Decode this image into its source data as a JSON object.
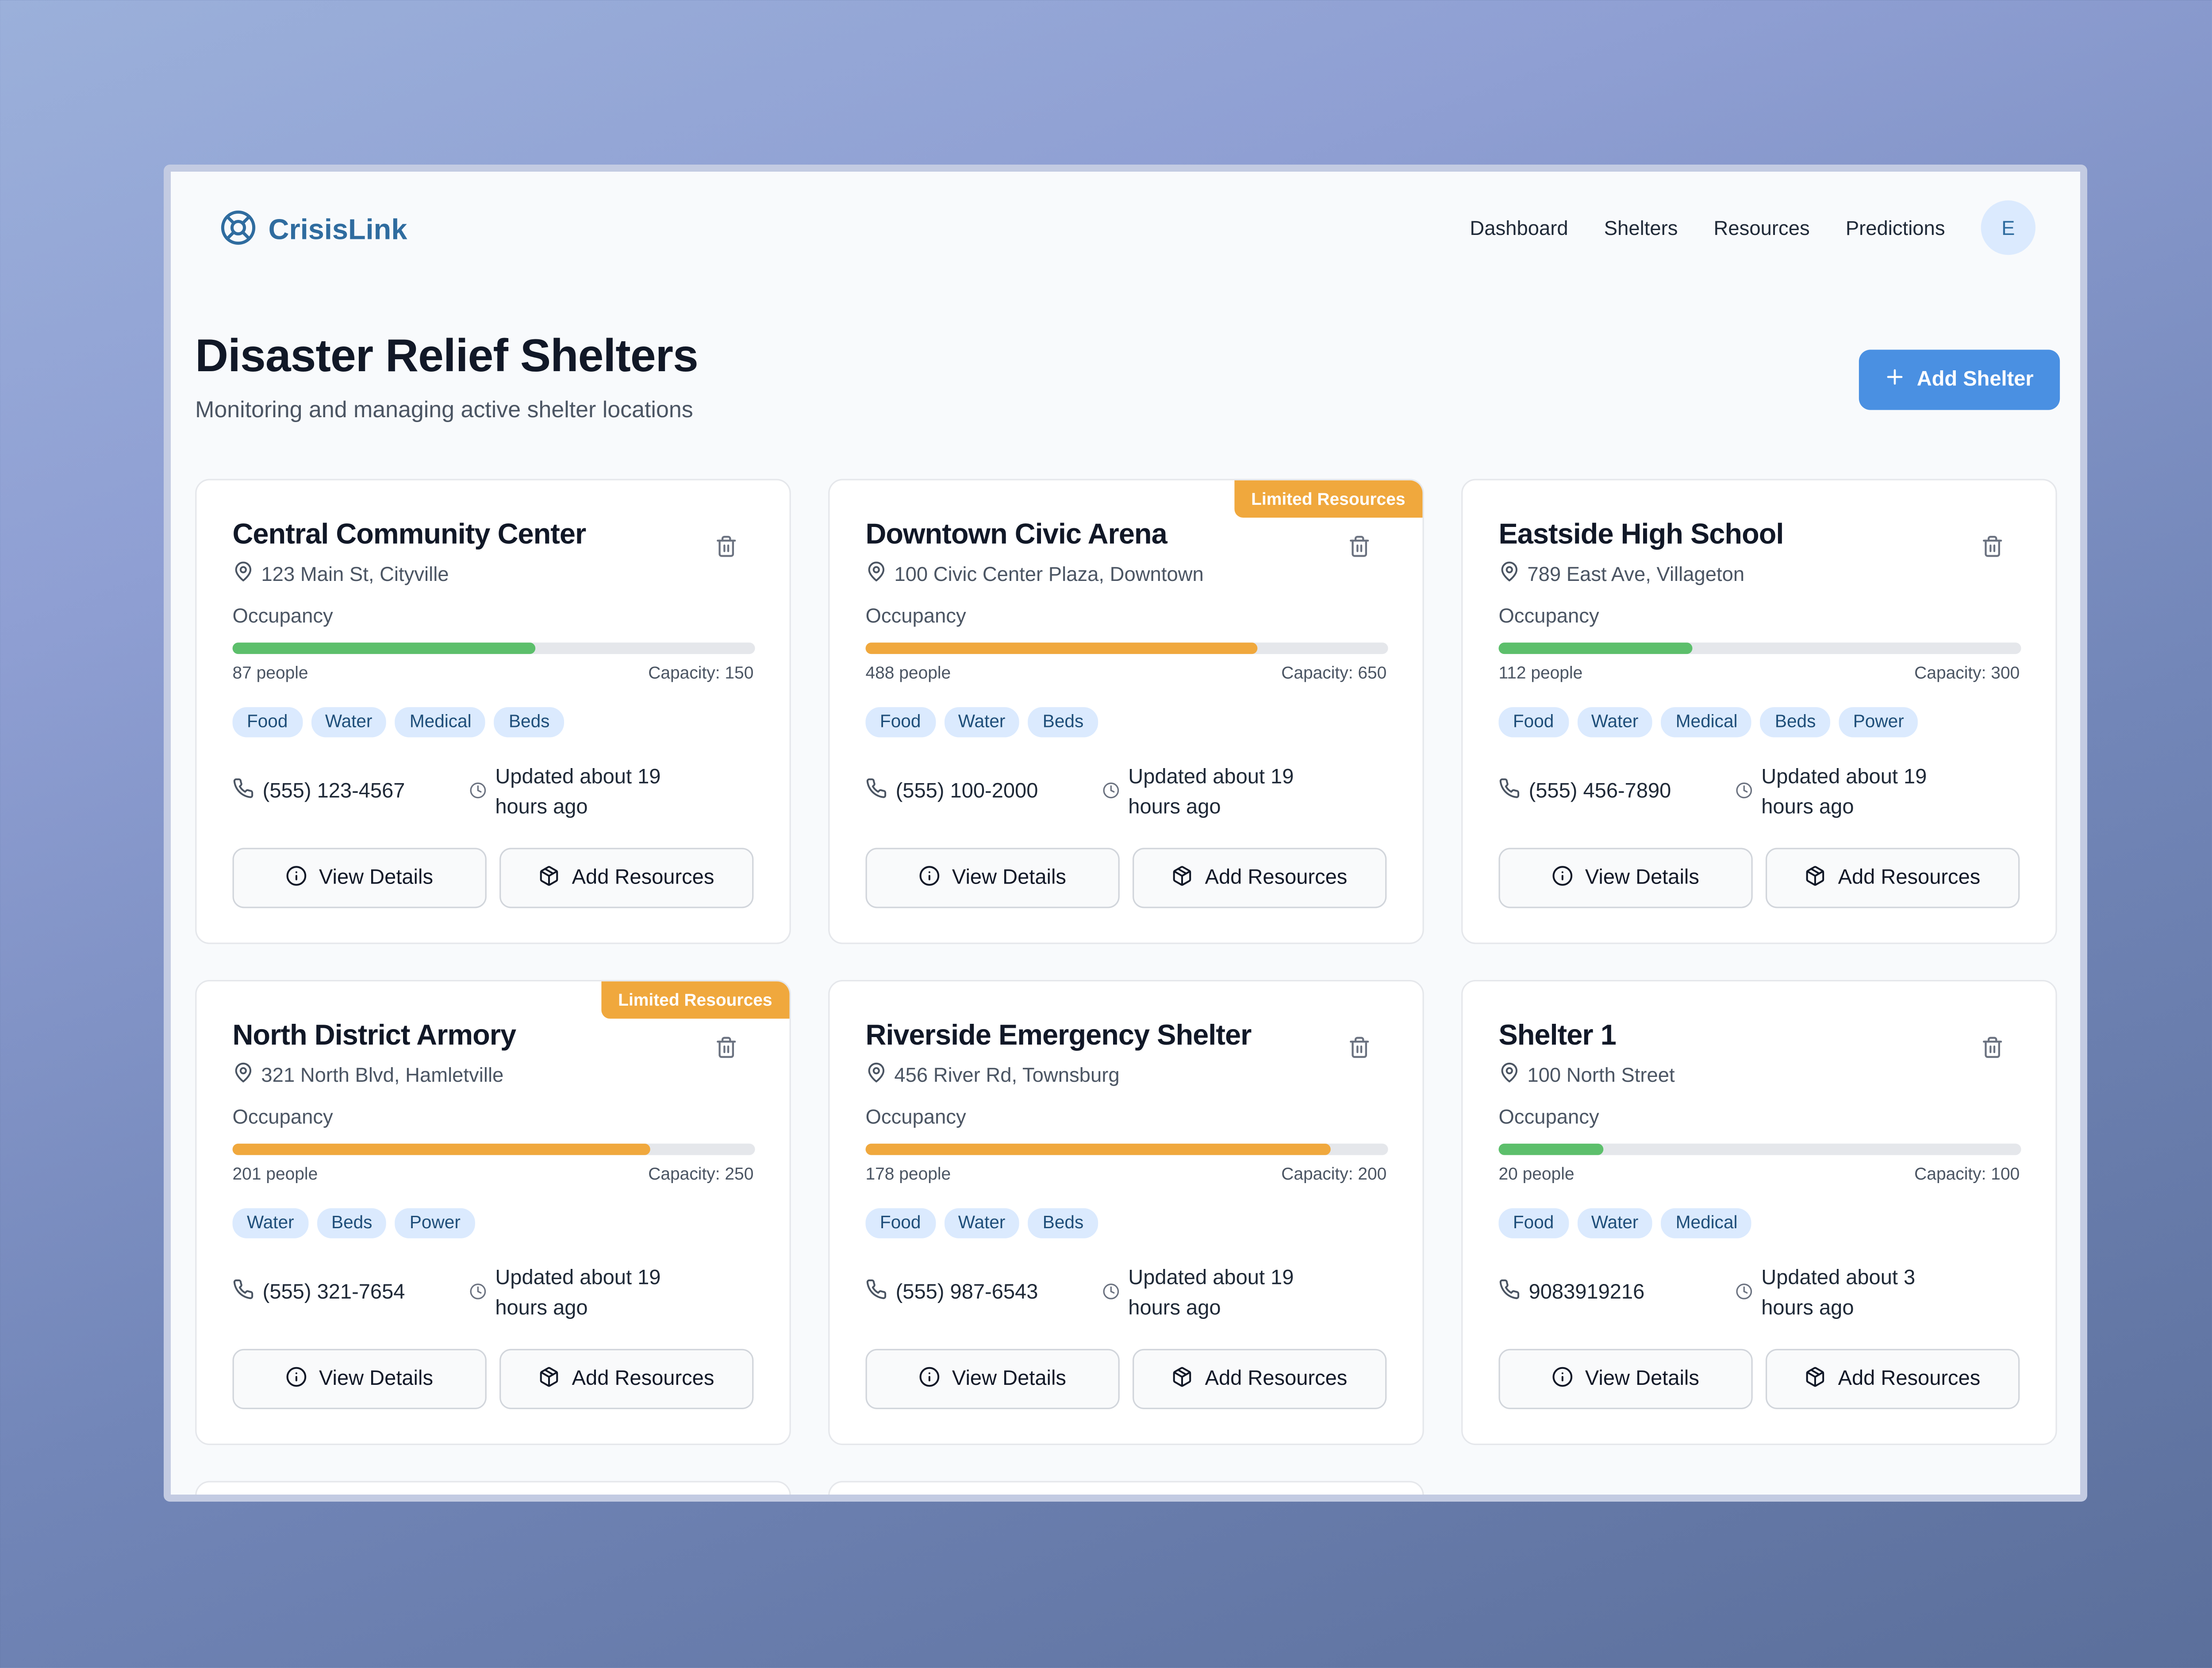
{
  "app": {
    "name": "CrisisLink",
    "logo_icon": "lifebuoy-icon"
  },
  "nav": {
    "items": [
      "Dashboard",
      "Shelters",
      "Resources",
      "Predictions"
    ],
    "avatar_initial": "E"
  },
  "page": {
    "title": "Disaster Relief Shelters",
    "subtitle": "Monitoring and managing active shelter locations",
    "add_button": "Add Shelter"
  },
  "labels": {
    "occupancy": "Occupancy",
    "view_details": "View Details",
    "add_resources": "Add Resources"
  },
  "colors": {
    "primary": "#4a90e2",
    "ok": "#5cbf6b",
    "warning": "#f0a83d",
    "tag_bg": "#dbeafe"
  },
  "shelters": [
    {
      "name": "Central Community Center",
      "address": "123 Main St, Cityville",
      "people": "87 people",
      "capacity": "Capacity: 150",
      "occupancy_fraction": 0.58,
      "status": "ok",
      "badge": "",
      "tags": [
        "Food",
        "Water",
        "Medical",
        "Beds"
      ],
      "phone": "(555) 123-4567",
      "updated": "Updated about 19 hours ago"
    },
    {
      "name": "Downtown Civic Arena",
      "address": "100 Civic Center Plaza, Downtown",
      "people": "488 people",
      "capacity": "Capacity: 650",
      "occupancy_fraction": 0.75,
      "status": "warning",
      "badge": "Limited Resources",
      "tags": [
        "Food",
        "Water",
        "Beds"
      ],
      "phone": "(555) 100-2000",
      "updated": "Updated about 19 hours ago"
    },
    {
      "name": "Eastside High School",
      "address": "789 East Ave, Villageton",
      "people": "112 people",
      "capacity": "Capacity: 300",
      "occupancy_fraction": 0.37,
      "status": "ok",
      "badge": "",
      "tags": [
        "Food",
        "Water",
        "Medical",
        "Beds",
        "Power"
      ],
      "phone": "(555) 456-7890",
      "updated": "Updated about 19 hours ago"
    },
    {
      "name": "North District Armory",
      "address": "321 North Blvd, Hamletville",
      "people": "201 people",
      "capacity": "Capacity: 250",
      "occupancy_fraction": 0.8,
      "status": "warning",
      "badge": "Limited Resources",
      "tags": [
        "Water",
        "Beds",
        "Power"
      ],
      "phone": "(555) 321-7654",
      "updated": "Updated about 19 hours ago"
    },
    {
      "name": "Riverside Emergency Shelter",
      "address": "456 River Rd, Townsburg",
      "people": "178 people",
      "capacity": "Capacity: 200",
      "occupancy_fraction": 0.89,
      "status": "warning",
      "badge": "",
      "tags": [
        "Food",
        "Water",
        "Beds"
      ],
      "phone": "(555) 987-6543",
      "updated": "Updated about 19 hours ago"
    },
    {
      "name": "Shelter 1",
      "address": "100 North Street",
      "people": "20 people",
      "capacity": "Capacity: 100",
      "occupancy_fraction": 0.2,
      "status": "ok",
      "badge": "",
      "tags": [
        "Food",
        "Water",
        "Medical"
      ],
      "phone": "9083919216",
      "updated": "Updated about 3 hours ago"
    }
  ]
}
